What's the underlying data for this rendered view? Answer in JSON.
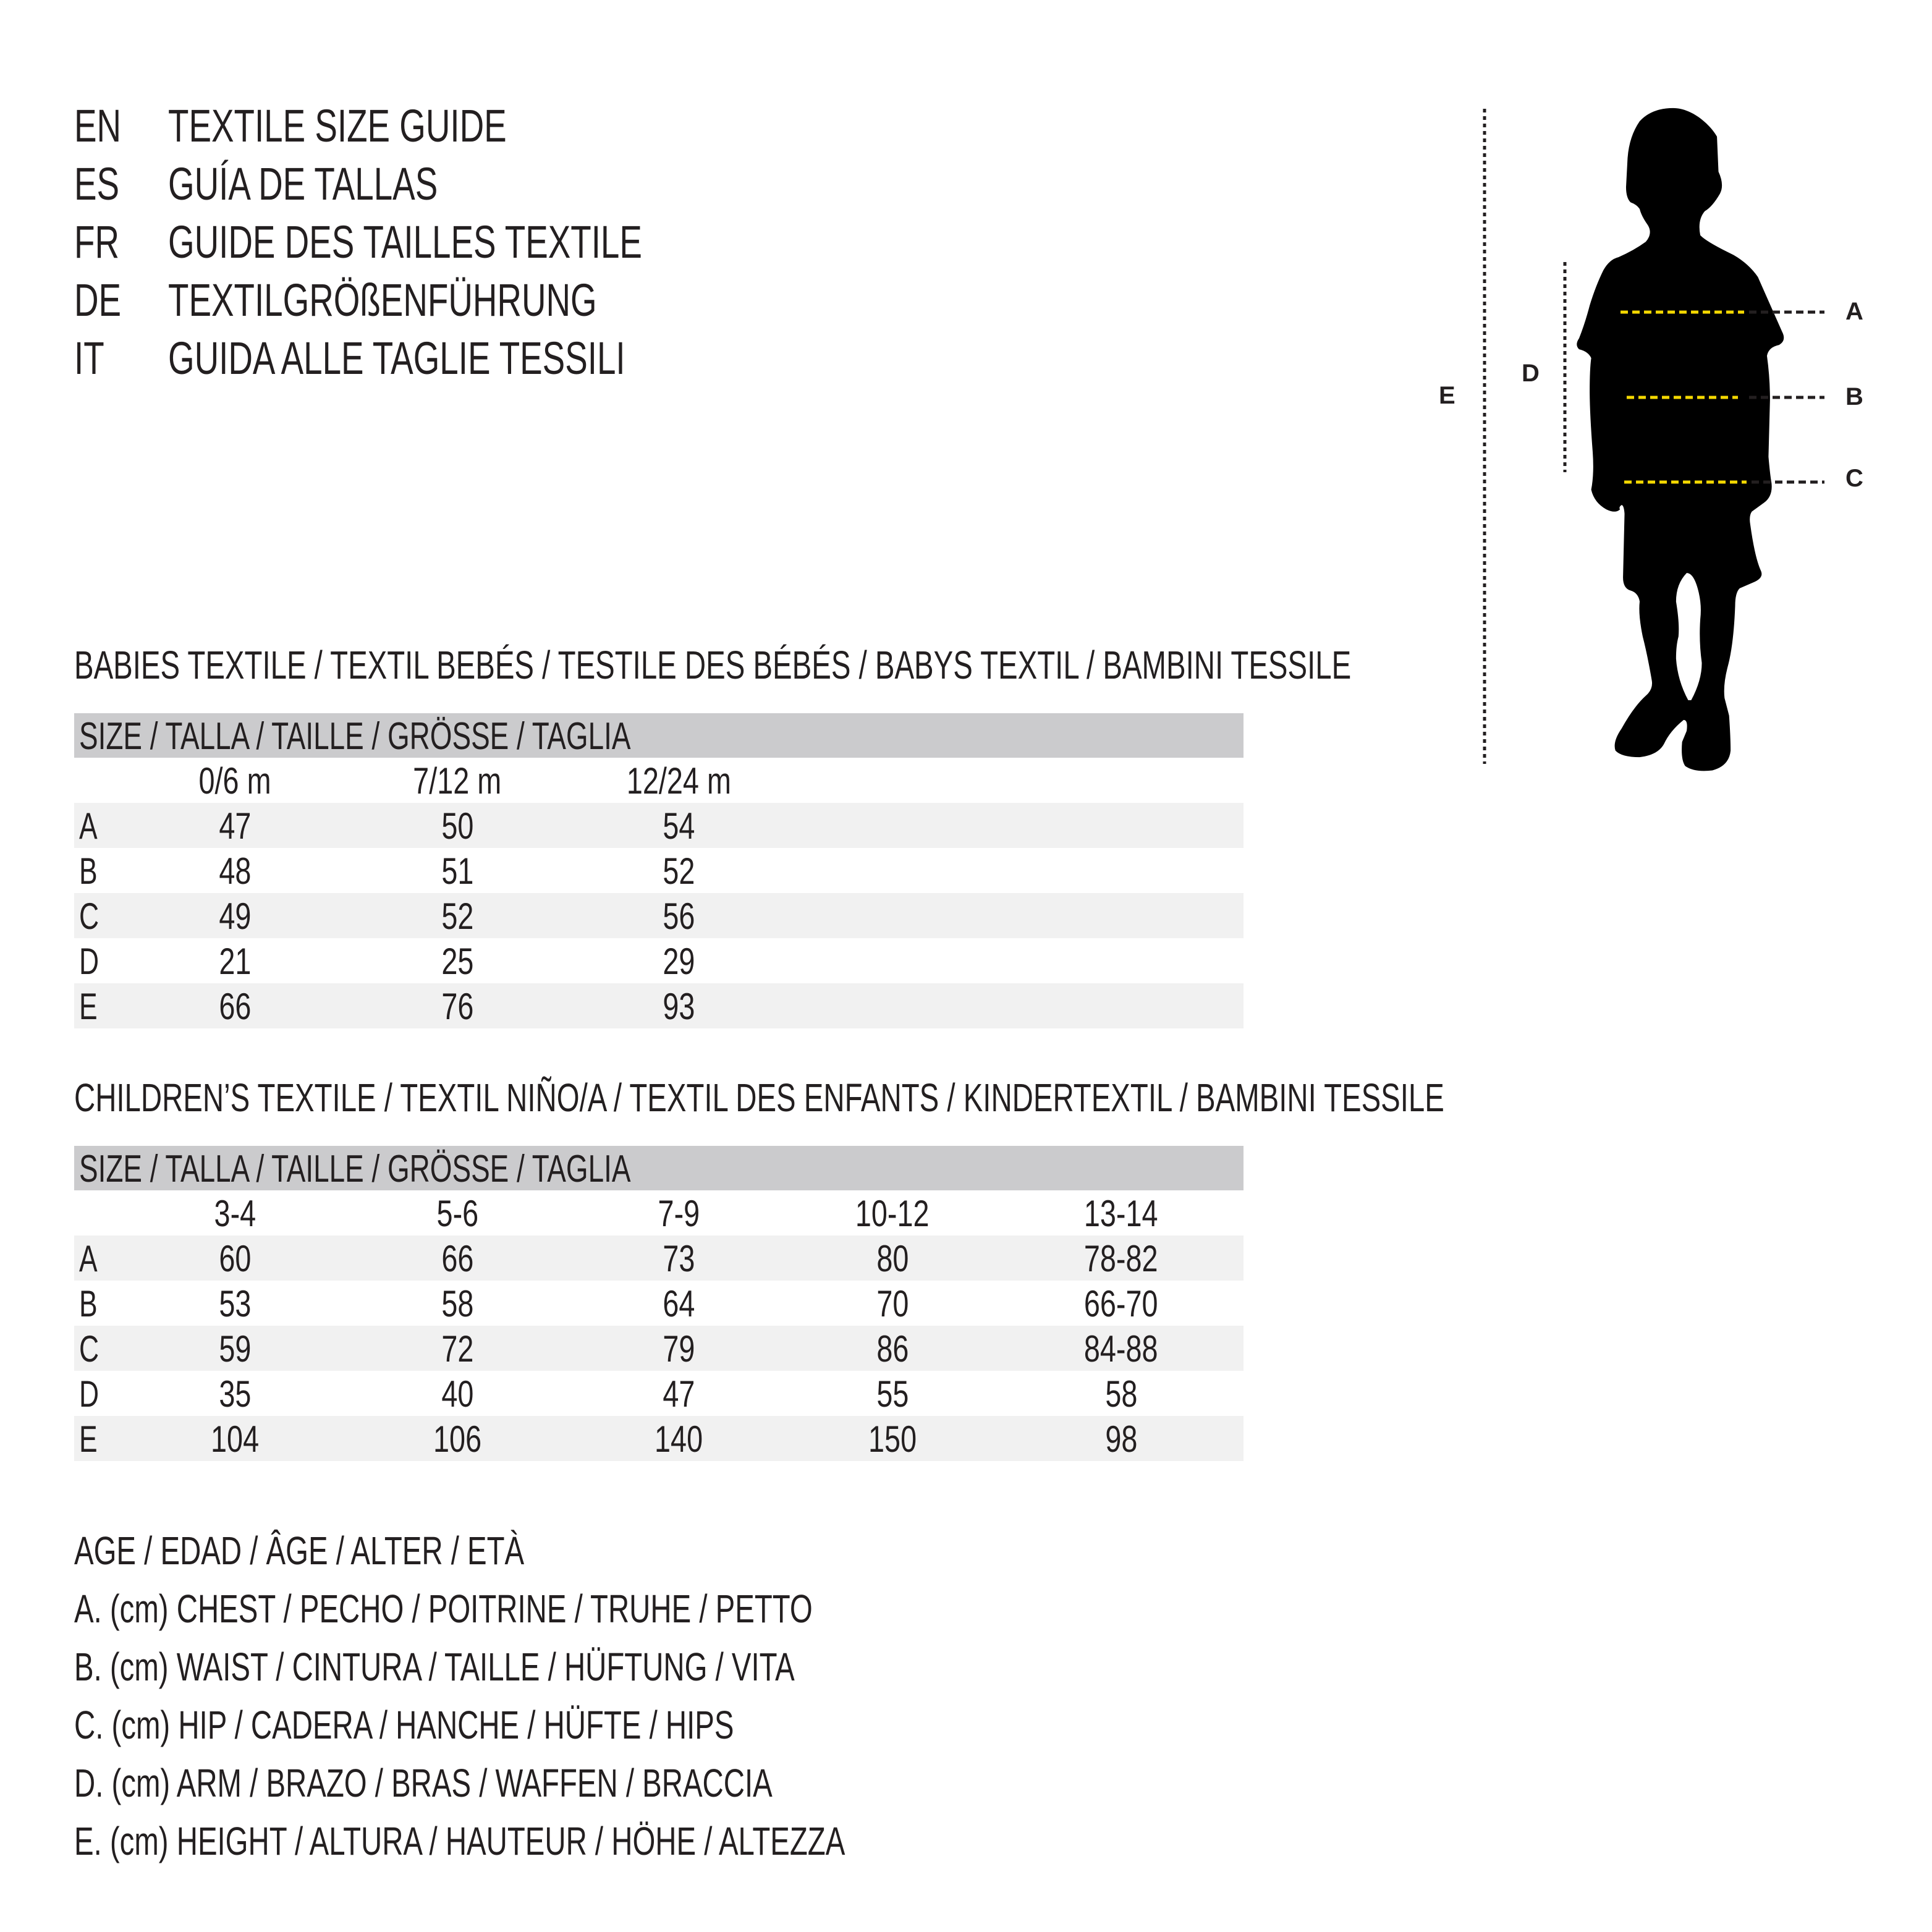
{
  "titles": [
    {
      "code": "EN",
      "text": "TEXTILE SIZE GUIDE"
    },
    {
      "code": "ES",
      "text": "GUÍA DE TALLAS"
    },
    {
      "code": "FR",
      "text": "GUIDE DES TAILLES TEXTILE"
    },
    {
      "code": "DE",
      "text": "TEXTILGRÖßENFÜHRUNG"
    },
    {
      "code": "IT",
      "text": "GUIDA ALLE TAGLIE TESSILI"
    }
  ],
  "figure": {
    "labels": {
      "A": "A",
      "B": "B",
      "C": "C",
      "D": "D",
      "E": "E"
    },
    "measure_line_color": "#f5d800",
    "silhouette_color": "#000000"
  },
  "babies": {
    "heading": "BABIES TEXTILE / TEXTIL BEBÉS / TESTILE DES BÉBÉS / BABYS TEXTIL / BAMBINI TESSILE",
    "size_header": "SIZE / TALLA / TAILLE / GRÖSSE / TAGLIA",
    "columns": [
      "0/6 m",
      "7/12 m",
      "12/24 m"
    ],
    "rows": [
      {
        "label": "A",
        "values": [
          "47",
          "50",
          "54"
        ]
      },
      {
        "label": "B",
        "values": [
          "48",
          "51",
          "52"
        ]
      },
      {
        "label": "C",
        "values": [
          "49",
          "52",
          "56"
        ]
      },
      {
        "label": "D",
        "values": [
          "21",
          "25",
          "29"
        ]
      },
      {
        "label": "E",
        "values": [
          "66",
          "76",
          "93"
        ]
      }
    ]
  },
  "children": {
    "heading": "CHILDREN’S TEXTILE / TEXTIL NIÑO/A / TEXTIL DES ENFANTS / KINDERTEXTIL / BAMBINI TESSILE",
    "size_header": "SIZE / TALLA / TAILLE / GRÖSSE / TAGLIA",
    "columns": [
      "3-4",
      "5-6",
      "7-9",
      "10-12",
      "13-14"
    ],
    "rows": [
      {
        "label": "A",
        "values": [
          "60",
          "66",
          "73",
          "80",
          "78-82"
        ]
      },
      {
        "label": "B",
        "values": [
          "53",
          "58",
          "64",
          "70",
          "66-70"
        ]
      },
      {
        "label": "C",
        "values": [
          "59",
          "72",
          "79",
          "86",
          "84-88"
        ]
      },
      {
        "label": "D",
        "values": [
          "35",
          "40",
          "47",
          "55",
          "58"
        ]
      },
      {
        "label": "E",
        "values": [
          "104",
          "106",
          "140",
          "150",
          "98"
        ]
      }
    ]
  },
  "legend": [
    "AGE / EDAD / ÂGE / ALTER / ETÀ",
    "A. (cm) CHEST / PECHO / POITRINE / TRUHE / PETTO",
    "B. (cm) WAIST / CINTURA / TAILLE / HÜFTUNG / VITA",
    "C. (cm) HIP / CADERA / HANCHE / HÜFTE / HIPS",
    "D. (cm) ARM / BRAZO / BRAS / WAFFEN / BRACCIA",
    "E. (cm) HEIGHT / ALTURA / HAUTEUR / HÖHE / ALTEZZA"
  ]
}
